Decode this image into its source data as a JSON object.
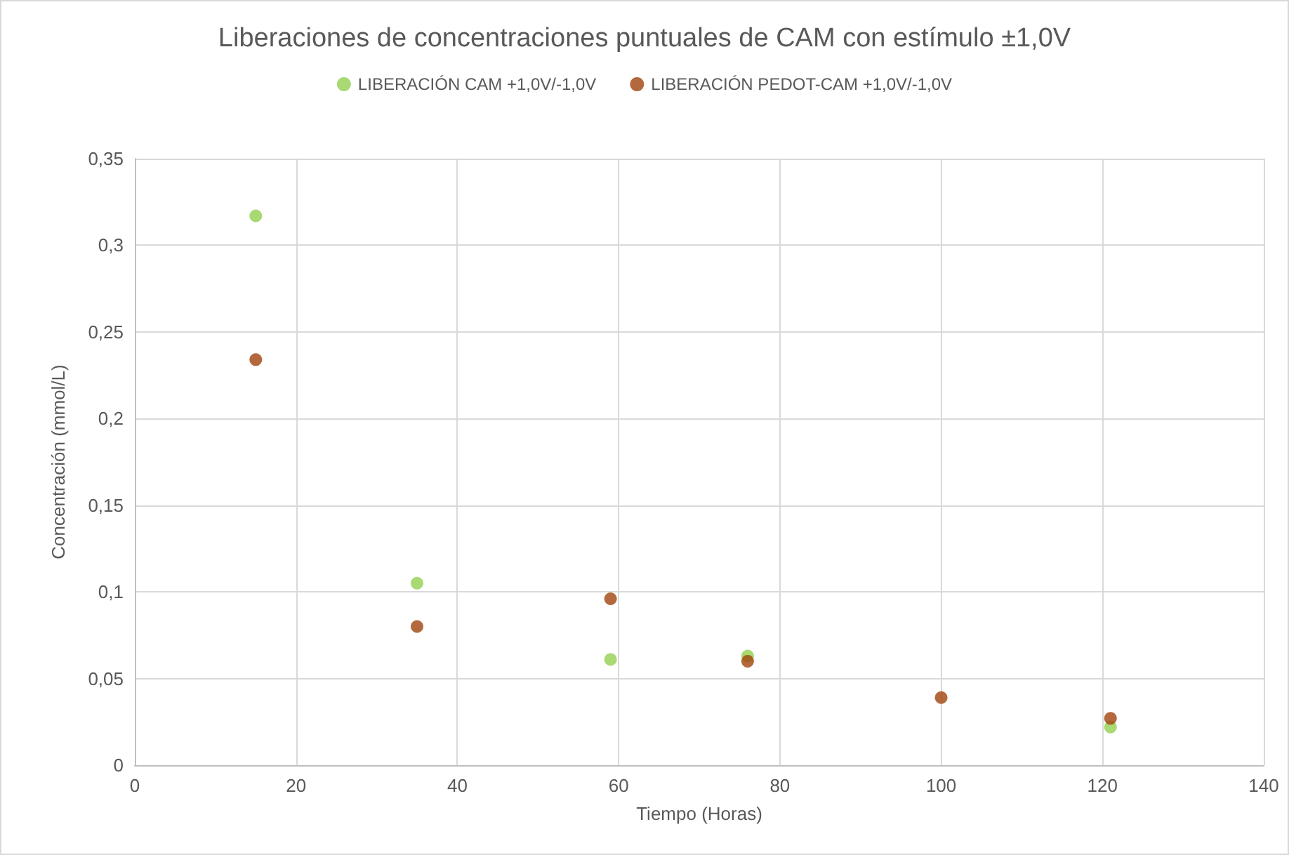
{
  "chart_data": {
    "type": "scatter",
    "title": "Liberaciones de concentraciones puntuales de CAM con estímulo ±1,0V",
    "xlabel": "Tiempo (Horas)",
    "ylabel": "Concentración (mmol/L)",
    "x": [
      15,
      35,
      59,
      76,
      100,
      121
    ],
    "series": [
      {
        "name": "LIBERACIÓN CAM +1,0V/-1,0V",
        "color": "#92d050",
        "values": [
          0.317,
          0.105,
          0.061,
          0.063,
          null,
          0.022
        ]
      },
      {
        "name": "LIBERACIÓN PEDOT-CAM +1,0V/-1,0V",
        "color": "#a0430c",
        "values": [
          0.234,
          0.08,
          0.096,
          0.06,
          0.039,
          0.027
        ]
      }
    ],
    "xlim": [
      0,
      140
    ],
    "xticks": [
      0,
      20,
      40,
      60,
      80,
      100,
      120,
      140
    ],
    "ylim": [
      0,
      0.35
    ],
    "yticks": [
      {
        "value": 0,
        "label": "0"
      },
      {
        "value": 0.05,
        "label": "0,05"
      },
      {
        "value": 0.1,
        "label": "0,1"
      },
      {
        "value": 0.15,
        "label": "0,15"
      },
      {
        "value": 0.2,
        "label": "0,2"
      },
      {
        "value": 0.25,
        "label": "0,25"
      },
      {
        "value": 0.3,
        "label": "0,3"
      },
      {
        "value": 0.35,
        "label": "0,35"
      }
    ],
    "grid": true,
    "legend": "top",
    "marker": "circle"
  }
}
